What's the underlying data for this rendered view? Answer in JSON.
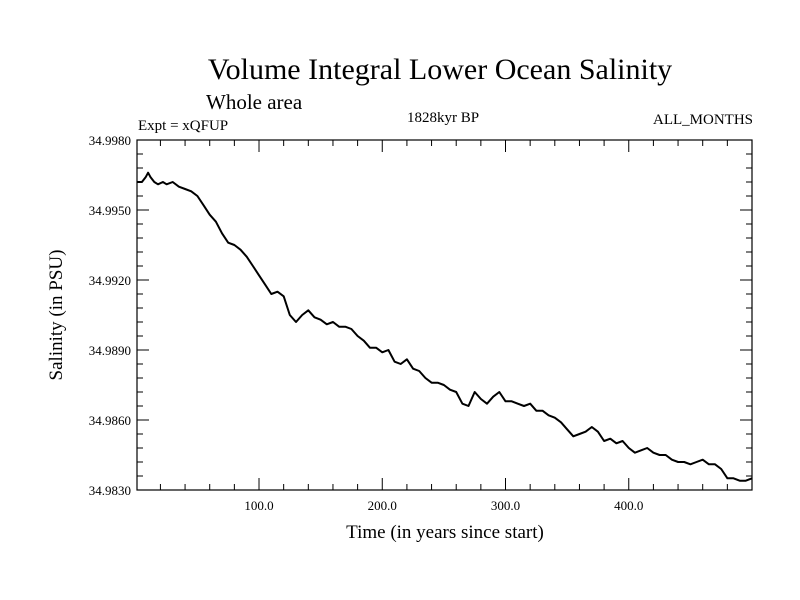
{
  "chart_data": {
    "type": "line",
    "title": "Volume Integral Lower Ocean Salinity",
    "subtitle": "Whole area",
    "expt_label": "Expt = xQFUP",
    "period_label": "1828kyr BP",
    "months_label": "ALL_MONTHS",
    "xlabel": "Time (in years since start)",
    "ylabel": "Salinity (in PSU)",
    "xlim": [
      1,
      500
    ],
    "ylim": [
      34.983,
      34.998
    ],
    "x_ticks": [
      100,
      200,
      300,
      400
    ],
    "x_tick_labels": [
      "100.0",
      "200.0",
      "300.0",
      "400.0"
    ],
    "y_ticks": [
      34.983,
      34.986,
      34.989,
      34.992,
      34.995,
      34.998
    ],
    "y_tick_labels": [
      "34.9830",
      "34.9860",
      "34.9890",
      "34.9920",
      "34.9950",
      "34.9980"
    ],
    "series": [
      {
        "name": "Salinity",
        "x": [
          1,
          5,
          8,
          10,
          12,
          15,
          18,
          22,
          25,
          30,
          35,
          40,
          45,
          50,
          55,
          60,
          65,
          70,
          75,
          80,
          85,
          90,
          95,
          100,
          105,
          110,
          115,
          120,
          125,
          130,
          135,
          140,
          145,
          150,
          155,
          160,
          165,
          170,
          175,
          180,
          185,
          190,
          195,
          200,
          205,
          210,
          215,
          220,
          225,
          230,
          235,
          240,
          245,
          250,
          255,
          260,
          265,
          270,
          275,
          280,
          285,
          290,
          295,
          300,
          305,
          310,
          315,
          320,
          325,
          330,
          335,
          340,
          345,
          350,
          355,
          360,
          365,
          370,
          375,
          380,
          385,
          390,
          395,
          400,
          405,
          410,
          415,
          420,
          425,
          430,
          435,
          440,
          445,
          450,
          455,
          460,
          465,
          470,
          475,
          480,
          485,
          490,
          495,
          500
        ],
        "y": [
          34.9962,
          34.9962,
          34.9964,
          34.9966,
          34.9964,
          34.9962,
          34.9961,
          34.9962,
          34.9961,
          34.9962,
          34.996,
          34.9959,
          34.9958,
          34.9956,
          34.9952,
          34.9948,
          34.9945,
          34.994,
          34.9936,
          34.9935,
          34.9933,
          34.993,
          34.9926,
          34.9922,
          34.9918,
          34.9914,
          34.9915,
          34.9913,
          34.9905,
          34.9902,
          34.9905,
          34.9907,
          34.9904,
          34.9903,
          34.9901,
          34.9902,
          34.99,
          34.99,
          34.9899,
          34.9896,
          34.9894,
          34.9891,
          34.9891,
          34.9889,
          34.989,
          34.9885,
          34.9884,
          34.9886,
          34.9882,
          34.9881,
          34.9878,
          34.9876,
          34.9876,
          34.9875,
          34.9873,
          34.9872,
          34.9867,
          34.9866,
          34.9872,
          34.9869,
          34.9867,
          34.987,
          34.9872,
          34.9868,
          34.9868,
          34.9867,
          34.9866,
          34.9867,
          34.9864,
          34.9864,
          34.9862,
          34.9861,
          34.9859,
          34.9856,
          34.9853,
          34.9854,
          34.9855,
          34.9857,
          34.9855,
          34.9851,
          34.9852,
          34.985,
          34.9851,
          34.9848,
          34.9846,
          34.9847,
          34.9848,
          34.9846,
          34.9845,
          34.9845,
          34.9843,
          34.9842,
          34.9842,
          34.9841,
          34.9842,
          34.9843,
          34.9841,
          34.9841,
          34.9839,
          34.9835,
          34.9835,
          34.9834,
          34.9834,
          34.9835
        ]
      }
    ]
  }
}
